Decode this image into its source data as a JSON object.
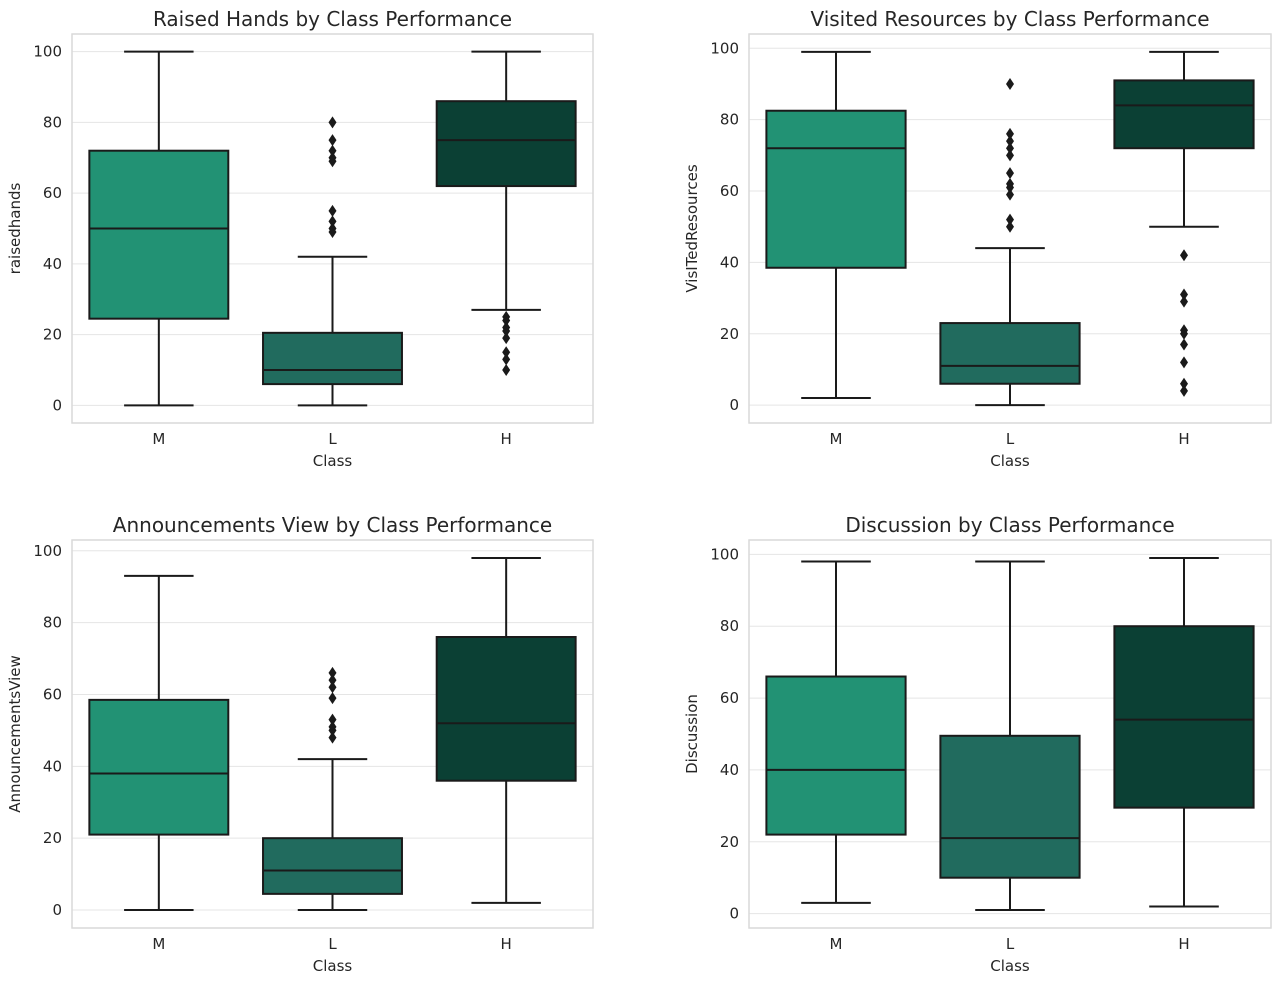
{
  "figure": {
    "background": "#ffffff",
    "grid_color": "#e5e5e5",
    "spine_color": "#d9d9d9",
    "line_color": "#1a1a1a"
  },
  "chart_data": [
    {
      "type": "box",
      "title": "Raised Hands by Class Performance",
      "xlabel": "Class",
      "ylabel": "raisedhands",
      "categories": [
        "M",
        "L",
        "H"
      ],
      "colors": [
        "#229274",
        "#216b5e",
        "#0b4034"
      ],
      "ylim": [
        -5,
        105
      ],
      "yticks": [
        0,
        20,
        40,
        60,
        80,
        100
      ],
      "grid": true,
      "boxes": [
        {
          "category": "M",
          "whisker_low": 0,
          "q1": 24.5,
          "median": 50,
          "q3": 72,
          "whisker_high": 100,
          "outliers": []
        },
        {
          "category": "L",
          "whisker_low": 0,
          "q1": 6,
          "median": 10,
          "q3": 20.5,
          "whisker_high": 42,
          "outliers": [
            49,
            50,
            52,
            55,
            69,
            70,
            72,
            75,
            80
          ]
        },
        {
          "category": "H",
          "whisker_low": 27,
          "q1": 62,
          "median": 75,
          "q3": 86,
          "whisker_high": 100,
          "outliers": [
            10,
            13,
            15,
            19,
            21,
            22,
            24,
            25
          ]
        }
      ]
    },
    {
      "type": "box",
      "title": "Visited Resources by Class Performance",
      "xlabel": "Class",
      "ylabel": "VisITedResources",
      "categories": [
        "M",
        "L",
        "H"
      ],
      "colors": [
        "#229274",
        "#216b5e",
        "#0b4034"
      ],
      "ylim": [
        -5,
        104
      ],
      "yticks": [
        0,
        20,
        40,
        60,
        80,
        100
      ],
      "grid": true,
      "boxes": [
        {
          "category": "M",
          "whisker_low": 2,
          "q1": 38.5,
          "median": 72,
          "q3": 82.5,
          "whisker_high": 99,
          "outliers": []
        },
        {
          "category": "L",
          "whisker_low": 0,
          "q1": 6,
          "median": 11,
          "q3": 23,
          "whisker_high": 44,
          "outliers": [
            50,
            52,
            59,
            61,
            62,
            65,
            70,
            72,
            74,
            76,
            90
          ]
        },
        {
          "category": "H",
          "whisker_low": 50,
          "q1": 72,
          "median": 84,
          "q3": 91,
          "whisker_high": 99,
          "outliers": [
            4,
            6,
            12,
            17,
            20,
            21,
            29,
            31,
            42
          ]
        }
      ]
    },
    {
      "type": "box",
      "title": "Announcements View by Class Performance",
      "xlabel": "Class",
      "ylabel": "AnnouncementsView",
      "categories": [
        "M",
        "L",
        "H"
      ],
      "colors": [
        "#229274",
        "#216b5e",
        "#0b4034"
      ],
      "ylim": [
        -5,
        103
      ],
      "yticks": [
        0,
        20,
        40,
        60,
        80,
        100
      ],
      "grid": true,
      "boxes": [
        {
          "category": "M",
          "whisker_low": 0,
          "q1": 21,
          "median": 38,
          "q3": 58.5,
          "whisker_high": 93,
          "outliers": []
        },
        {
          "category": "L",
          "whisker_low": 0,
          "q1": 4.5,
          "median": 11,
          "q3": 20,
          "whisker_high": 42,
          "outliers": [
            48,
            50,
            51,
            53,
            59,
            62,
            64,
            66
          ]
        },
        {
          "category": "H",
          "whisker_low": 2,
          "q1": 36,
          "median": 52,
          "q3": 76,
          "whisker_high": 98,
          "outliers": []
        }
      ]
    },
    {
      "type": "box",
      "title": "Discussion by Class Performance",
      "xlabel": "Class",
      "ylabel": "Discussion",
      "categories": [
        "M",
        "L",
        "H"
      ],
      "colors": [
        "#229274",
        "#216b5e",
        "#0b4034"
      ],
      "ylim": [
        -4,
        104
      ],
      "yticks": [
        0,
        20,
        40,
        60,
        80,
        100
      ],
      "grid": true,
      "boxes": [
        {
          "category": "M",
          "whisker_low": 3,
          "q1": 22,
          "median": 40,
          "q3": 66,
          "whisker_high": 98,
          "outliers": []
        },
        {
          "category": "L",
          "whisker_low": 1,
          "q1": 10,
          "median": 21,
          "q3": 49.5,
          "whisker_high": 98,
          "outliers": []
        },
        {
          "category": "H",
          "whisker_low": 2,
          "q1": 29.5,
          "median": 54,
          "q3": 80,
          "whisker_high": 99,
          "outliers": []
        }
      ]
    }
  ]
}
